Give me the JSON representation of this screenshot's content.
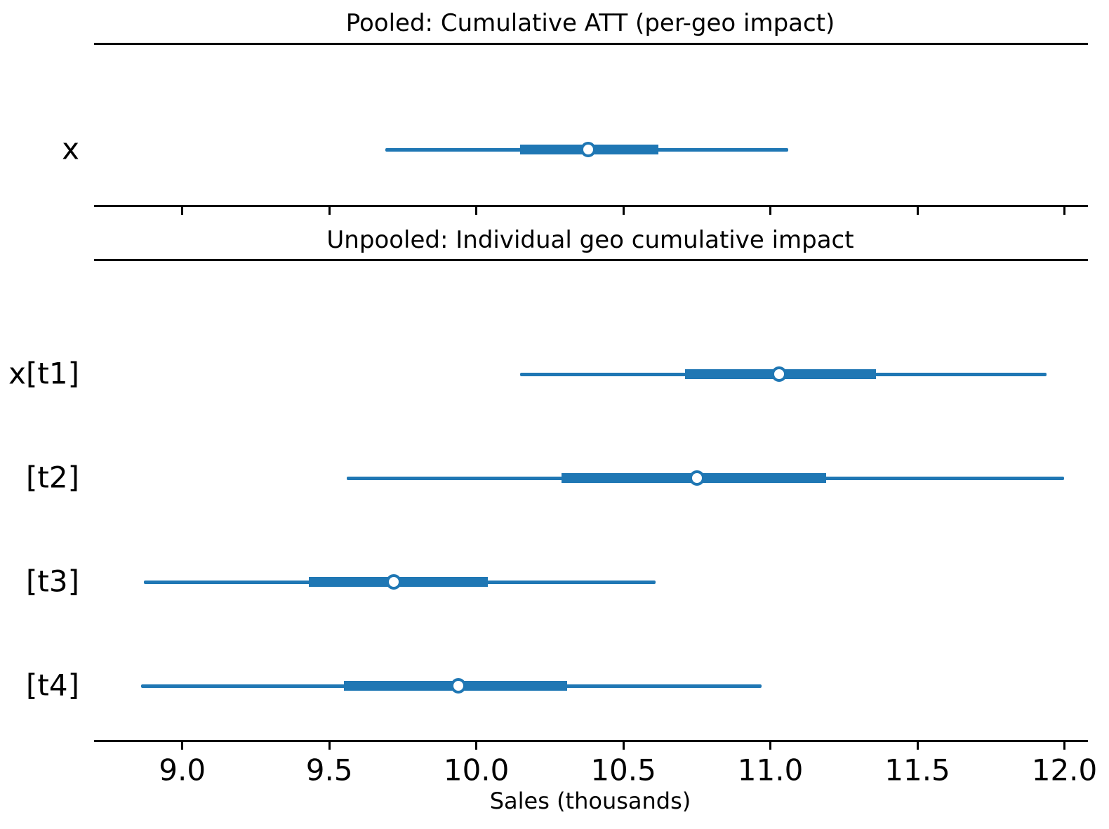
{
  "chart_data": {
    "type": "forest",
    "xlabel": "Sales (thousands)",
    "x_ticks": [
      9.0,
      9.5,
      10.0,
      10.5,
      11.0,
      11.5,
      12.0
    ],
    "x_tick_labels": [
      "9.0",
      "9.5",
      "10.0",
      "10.5",
      "11.0",
      "11.5",
      "12.0"
    ],
    "xlim": [
      8.7,
      12.08
    ],
    "grid": false,
    "legend": "none",
    "colors": {
      "interval": "#1f77b4",
      "marker_fill": "#ffffff",
      "text": "#000000"
    },
    "panels": [
      {
        "title": "Pooled: Cumulative ATT (per-geo impact)",
        "rows": [
          {
            "label": "x",
            "hdi_outer": [
              9.69,
              11.06
            ],
            "hdi_inner": [
              10.15,
              10.62
            ],
            "median": 10.38
          }
        ]
      },
      {
        "title": "Unpooled: Individual geo cumulative impact",
        "rows": [
          {
            "label": "x[t1]",
            "hdi_outer": [
              10.15,
              11.94
            ],
            "hdi_inner": [
              10.71,
              11.36
            ],
            "median": 11.03
          },
          {
            "label": "[t2]",
            "hdi_outer": [
              9.56,
              12.0
            ],
            "hdi_inner": [
              10.29,
              11.19
            ],
            "median": 10.75
          },
          {
            "label": "[t3]",
            "hdi_outer": [
              8.87,
              10.61
            ],
            "hdi_inner": [
              9.43,
              10.04
            ],
            "median": 9.72
          },
          {
            "label": "[t4]",
            "hdi_outer": [
              8.86,
              10.97
            ],
            "hdi_inner": [
              9.55,
              10.31
            ],
            "median": 9.94
          }
        ]
      }
    ]
  }
}
